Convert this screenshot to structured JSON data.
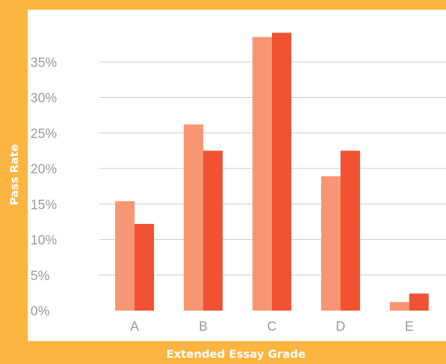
{
  "chart_data": {
    "type": "bar",
    "title": "",
    "xlabel": "Extended Essay Grade",
    "ylabel": "Pass Rate",
    "categories": [
      "A",
      "B",
      "C",
      "D",
      "E"
    ],
    "series": [
      {
        "values": [
          15.4,
          26.2,
          38.5,
          18.9,
          1.2
        ],
        "color": "#F89673"
      },
      {
        "values": [
          12.2,
          22.5,
          39.1,
          22.5,
          2.4
        ],
        "color": "#F05233"
      }
    ],
    "ylim": [
      0,
      39
    ],
    "yticks": [
      0,
      5,
      10,
      15,
      20,
      25,
      30,
      35
    ],
    "ytick_labels": [
      "0%",
      "5%",
      "10%",
      "15%",
      "20%",
      "25%",
      "30%",
      "35%"
    ],
    "grid": true,
    "legend": "none"
  },
  "colors": {
    "background": "#FDB440",
    "panel": "#FFFFFF",
    "gridline": "#C8C8C8",
    "tick_text": "#9A9A9A"
  }
}
